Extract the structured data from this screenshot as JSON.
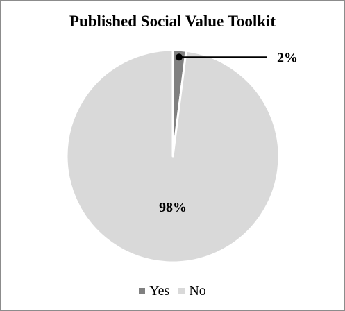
{
  "chart_data": {
    "type": "pie",
    "title": "Published Social Value Toolkit",
    "categories": [
      "Yes",
      "No"
    ],
    "values": [
      2,
      98
    ],
    "data_labels": [
      "2%",
      "98%"
    ],
    "colors": [
      "#808080",
      "#d9d9d9"
    ],
    "legend": {
      "placement": "bottom",
      "entries": [
        "Yes",
        "No"
      ]
    }
  }
}
